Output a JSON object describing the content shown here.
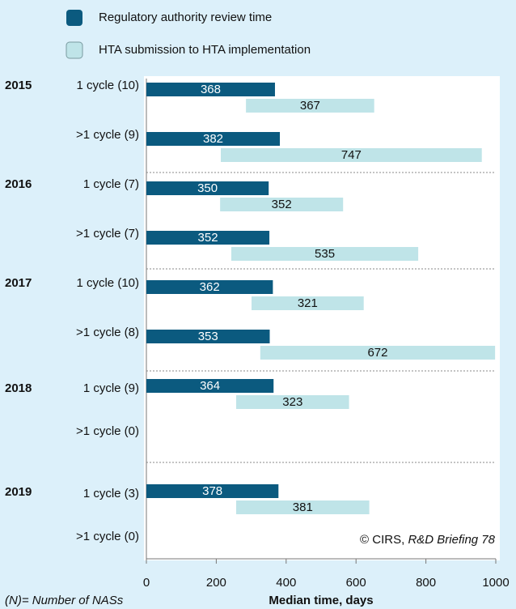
{
  "chart_data": {
    "type": "floating-bar",
    "legend": [
      "Regulatory authority review time",
      "HTA submission to HTA implementation"
    ],
    "years": [
      "2015",
      "2016",
      "2017",
      "2018",
      "2019"
    ],
    "categories": [
      "1 cycle (10)",
      ">1 cycle (9)",
      "1 cycle (7)",
      ">1 cycle (7)",
      "1 cycle (10)",
      ">1 cycle (8)",
      "1 cycle (9)",
      ">1 cycle (0)",
      "1 cycle (3)",
      ">1 cycle (0)"
    ],
    "series": [
      {
        "name": "Regulatory authority review time",
        "color": "#0b5a7f",
        "values": [
          368,
          382,
          350,
          352,
          362,
          353,
          364,
          null,
          378,
          null
        ]
      },
      {
        "name": "HTA submission to HTA implementation",
        "color": "#bfe4e8",
        "starts": [
          285,
          213,
          211,
          243,
          301,
          326,
          257,
          null,
          257,
          null
        ],
        "values": [
          367,
          747,
          352,
          535,
          321,
          672,
          323,
          null,
          381,
          null
        ]
      }
    ],
    "xlim": [
      0,
      1000
    ],
    "xticks": [
      0,
      200,
      400,
      600,
      800,
      1000
    ],
    "xlabel": "Median time, days",
    "annotation": [
      "© CIRS, ",
      "R&D Briefing 78"
    ],
    "footnote": "(N)= Number of NASs"
  }
}
